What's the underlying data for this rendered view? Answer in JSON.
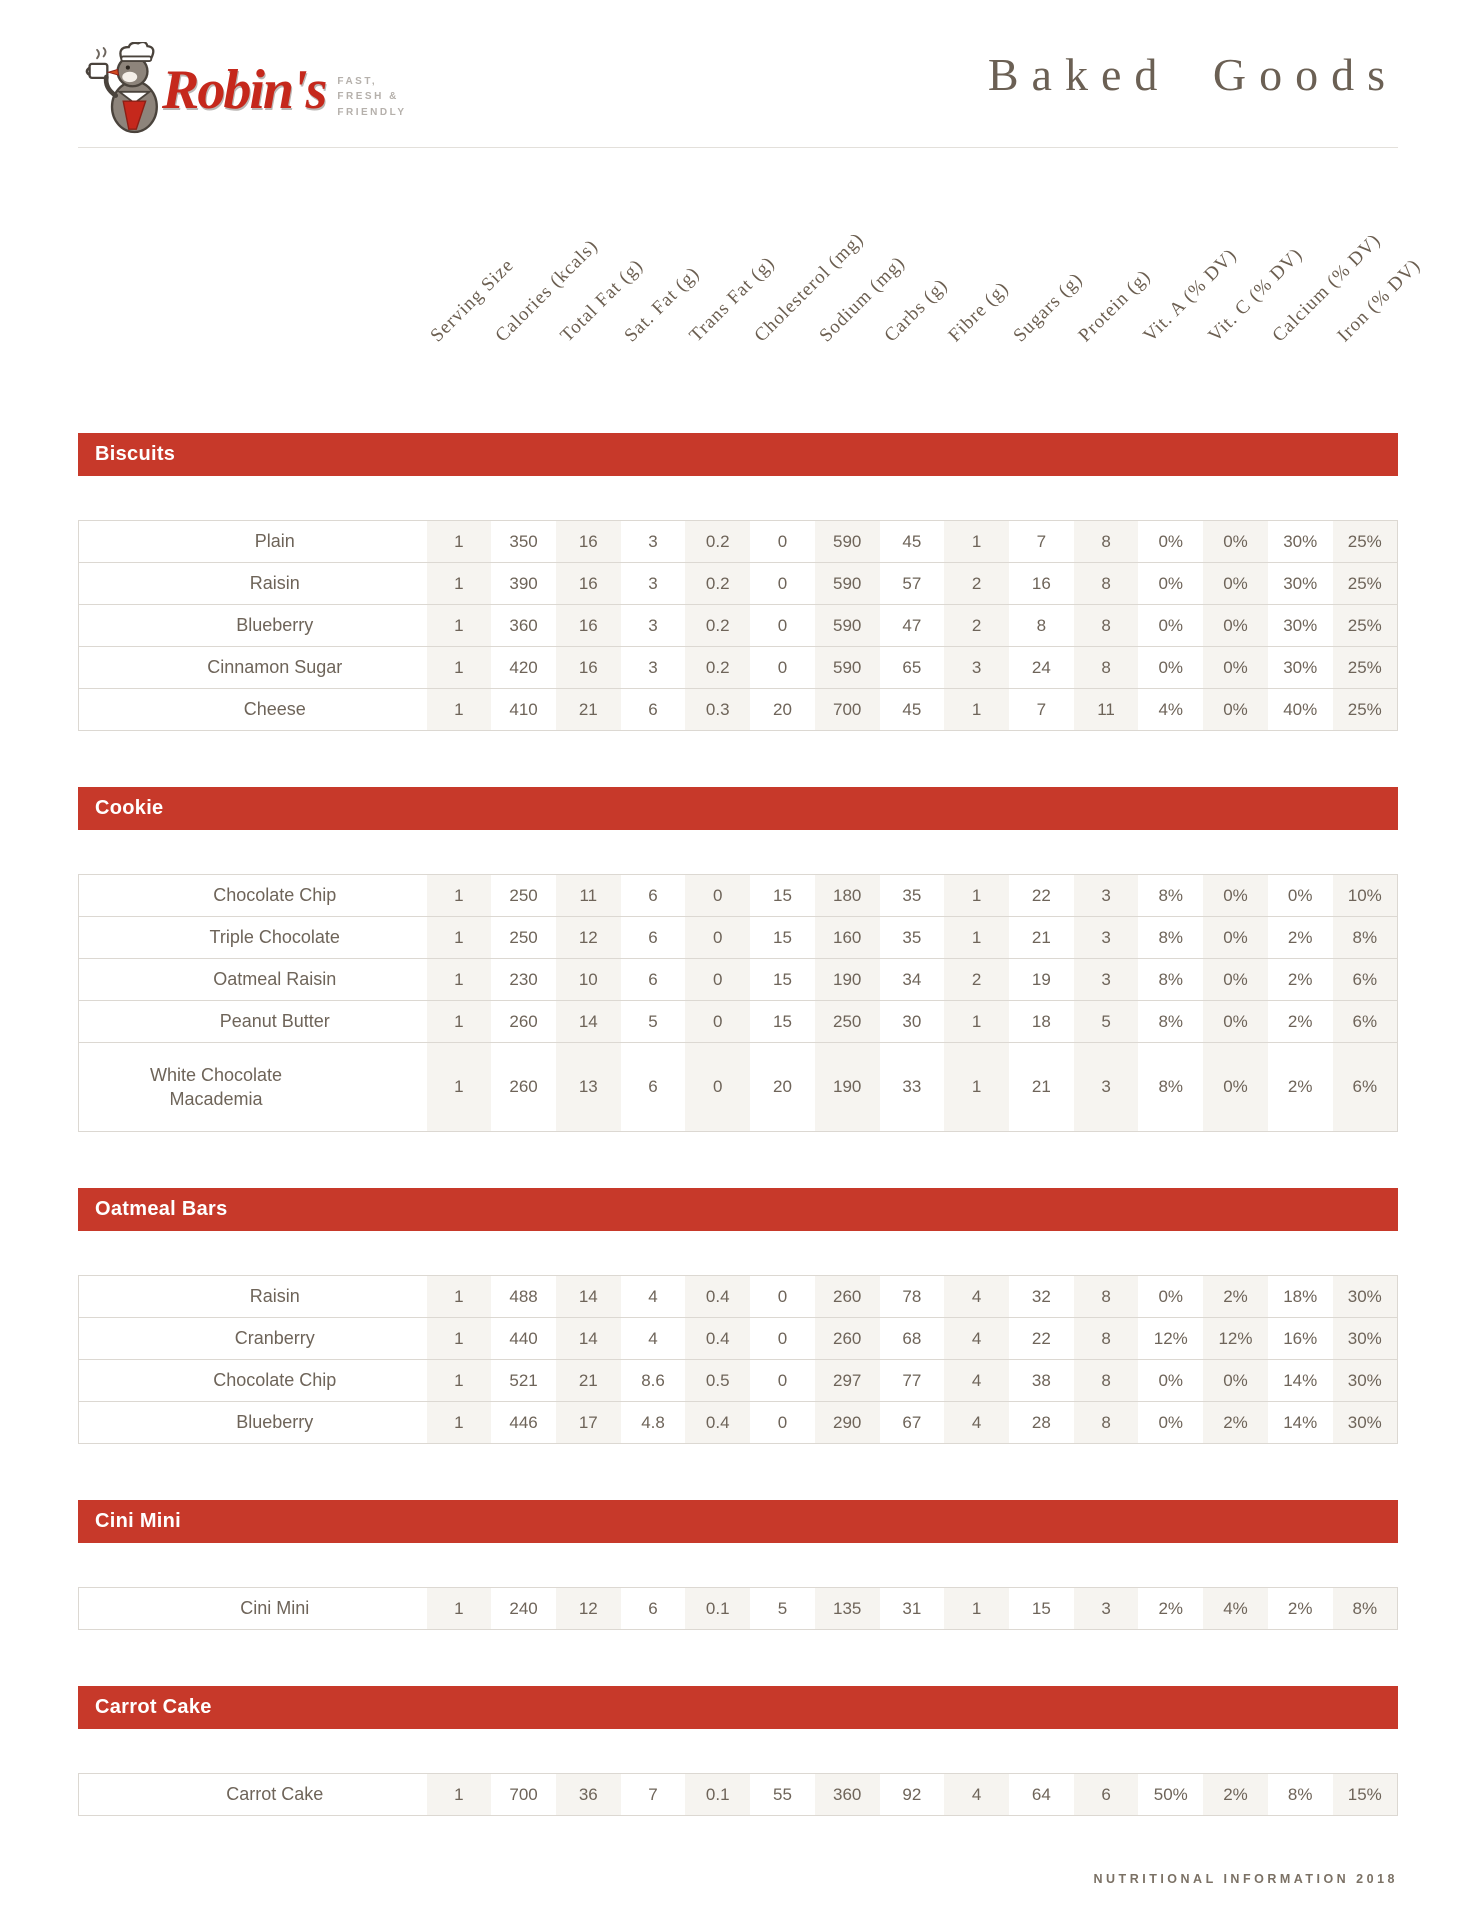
{
  "brand": {
    "name": "Robin's",
    "tagline_lines": [
      "FAST,",
      "FRESH &",
      "FRIENDLY"
    ],
    "accent_red": "#c7392a",
    "ink_color": "#6e6459",
    "handwriting_color": "#6b5e50"
  },
  "doc_title": "Baked Goods",
  "columns": [
    "Serving Size",
    "Calories (kcals)",
    "Total Fat (g)",
    "Sat. Fat (g)",
    "Trans Fat (g)",
    "Cholesterol (mg)",
    "Sodium (mg)",
    "Carbs (g)",
    "Fibre (g)",
    "Sugars (g)",
    "Protein (g)",
    "Vit. A (% DV)",
    "Vit. C (% DV)",
    "Calcium (% DV)",
    "Iron (% DV)"
  ],
  "sections": [
    {
      "title": "Biscuits",
      "rows": [
        {
          "label": "Plain",
          "values": [
            "1",
            "350",
            "16",
            "3",
            "0.2",
            "0",
            "590",
            "45",
            "1",
            "7",
            "8",
            "0%",
            "0%",
            "30%",
            "25%"
          ]
        },
        {
          "label": "Raisin",
          "values": [
            "1",
            "390",
            "16",
            "3",
            "0.2",
            "0",
            "590",
            "57",
            "2",
            "16",
            "8",
            "0%",
            "0%",
            "30%",
            "25%"
          ]
        },
        {
          "label": "Blueberry",
          "values": [
            "1",
            "360",
            "16",
            "3",
            "0.2",
            "0",
            "590",
            "47",
            "2",
            "8",
            "8",
            "0%",
            "0%",
            "30%",
            "25%"
          ]
        },
        {
          "label": "Cinnamon Sugar",
          "values": [
            "1",
            "420",
            "16",
            "3",
            "0.2",
            "0",
            "590",
            "65",
            "3",
            "24",
            "8",
            "0%",
            "0%",
            "30%",
            "25%"
          ]
        },
        {
          "label": "Cheese",
          "values": [
            "1",
            "410",
            "21",
            "6",
            "0.3",
            "20",
            "700",
            "45",
            "1",
            "7",
            "11",
            "4%",
            "0%",
            "40%",
            "25%"
          ]
        }
      ]
    },
    {
      "title": "Cookie",
      "rows": [
        {
          "label": "Chocolate Chip",
          "values": [
            "1",
            "250",
            "11",
            "6",
            "0",
            "15",
            "180",
            "35",
            "1",
            "22",
            "3",
            "8%",
            "0%",
            "0%",
            "10%"
          ]
        },
        {
          "label": "Triple Chocolate",
          "values": [
            "1",
            "250",
            "12",
            "6",
            "0",
            "15",
            "160",
            "35",
            "1",
            "21",
            "3",
            "8%",
            "0%",
            "2%",
            "8%"
          ]
        },
        {
          "label": "Oatmeal Raisin",
          "values": [
            "1",
            "230",
            "10",
            "6",
            "0",
            "15",
            "190",
            "34",
            "2",
            "19",
            "3",
            "8%",
            "0%",
            "2%",
            "6%"
          ]
        },
        {
          "label": "Peanut Butter",
          "values": [
            "1",
            "260",
            "14",
            "5",
            "0",
            "15",
            "250",
            "30",
            "1",
            "18",
            "5",
            "8%",
            "0%",
            "2%",
            "6%"
          ]
        },
        {
          "label": "White Chocolate Macademia",
          "tall": true,
          "values": [
            "1",
            "260",
            "13",
            "6",
            "0",
            "20",
            "190",
            "33",
            "1",
            "21",
            "3",
            "8%",
            "0%",
            "2%",
            "6%"
          ]
        }
      ]
    },
    {
      "title": "Oatmeal Bars",
      "rows": [
        {
          "label": "Raisin",
          "values": [
            "1",
            "488",
            "14",
            "4",
            "0.4",
            "0",
            "260",
            "78",
            "4",
            "32",
            "8",
            "0%",
            "2%",
            "18%",
            "30%"
          ]
        },
        {
          "label": "Cranberry",
          "values": [
            "1",
            "440",
            "14",
            "4",
            "0.4",
            "0",
            "260",
            "68",
            "4",
            "22",
            "8",
            "12%",
            "12%",
            "16%",
            "30%"
          ]
        },
        {
          "label": "Chocolate Chip",
          "values": [
            "1",
            "521",
            "21",
            "8.6",
            "0.5",
            "0",
            "297",
            "77",
            "4",
            "38",
            "8",
            "0%",
            "0%",
            "14%",
            "30%"
          ]
        },
        {
          "label": "Blueberry",
          "values": [
            "1",
            "446",
            "17",
            "4.8",
            "0.4",
            "0",
            "290",
            "67",
            "4",
            "28",
            "8",
            "0%",
            "2%",
            "14%",
            "30%"
          ]
        }
      ]
    },
    {
      "title": "Cini Mini",
      "rows": [
        {
          "label": "Cini Mini",
          "values": [
            "1",
            "240",
            "12",
            "6",
            "0.1",
            "5",
            "135",
            "31",
            "1",
            "15",
            "3",
            "2%",
            "4%",
            "2%",
            "8%"
          ]
        }
      ]
    },
    {
      "title": "Carrot Cake",
      "rows": [
        {
          "label": "Carrot Cake",
          "values": [
            "1",
            "700",
            "36",
            "7",
            "0.1",
            "55",
            "360",
            "92",
            "4",
            "64",
            "6",
            "50%",
            "2%",
            "8%",
            "15%"
          ]
        }
      ]
    }
  ],
  "footer": "NUTRITIONAL INFORMATION 2018"
}
